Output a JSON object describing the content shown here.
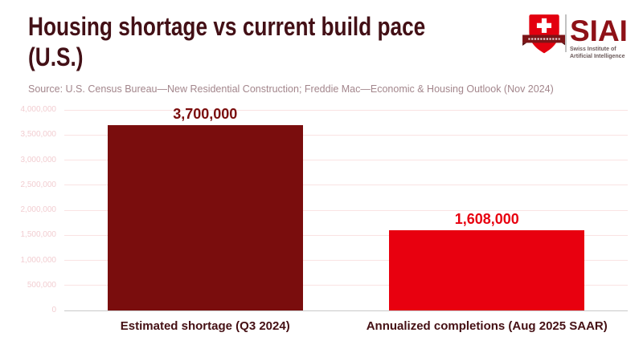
{
  "header": {
    "title": "Housing shortage vs current build pace (U.S.)",
    "title_lines": [
      "Housing shortage vs current build pace",
      "(U.S.)"
    ],
    "source": "Source: U.S. Census Bureau—New Residential Construction; Freddie Mac—Economic & Housing Outlook (Nov 2024)"
  },
  "logo": {
    "acronym": "SIAI",
    "subtitle_line1": "Swiss Institute of",
    "subtitle_line2": "Artificial Intelligence",
    "colors": {
      "shield": "#e3000f",
      "banner": "#7c1417",
      "acronym": "#8e1117",
      "subtitle": "#6b5a5a"
    }
  },
  "chart_data": {
    "type": "bar",
    "title": "Housing shortage vs current build pace (U.S.)",
    "categories": [
      "Estimated shortage (Q3 2024)",
      "Annualized completions (Aug 2025 SAAR)"
    ],
    "values": [
      3700000,
      1608000
    ],
    "value_labels": [
      "3,700,000",
      "1,608,000"
    ],
    "bar_colors": [
      "#7a0d0d",
      "#e8000f"
    ],
    "category_label_color": "#451014",
    "xlabel": "",
    "ylabel": "",
    "ylim": [
      0,
      4000000
    ],
    "ytick_values": [
      0,
      500000,
      1000000,
      1500000,
      2000000,
      2500000,
      3000000,
      3500000,
      4000000
    ],
    "ytick_labels": [
      "0",
      "500,000",
      "1,000,000",
      "1,500,000",
      "2,000,000",
      "2,500,000",
      "3,000,000",
      "3,500,000",
      "4,000,000"
    ],
    "grid": true,
    "legend": false,
    "source": "Source: U.S. Census Bureau—New Residential Construction; Freddie Mac—Economic & Housing Outlook (Nov 2024)"
  }
}
